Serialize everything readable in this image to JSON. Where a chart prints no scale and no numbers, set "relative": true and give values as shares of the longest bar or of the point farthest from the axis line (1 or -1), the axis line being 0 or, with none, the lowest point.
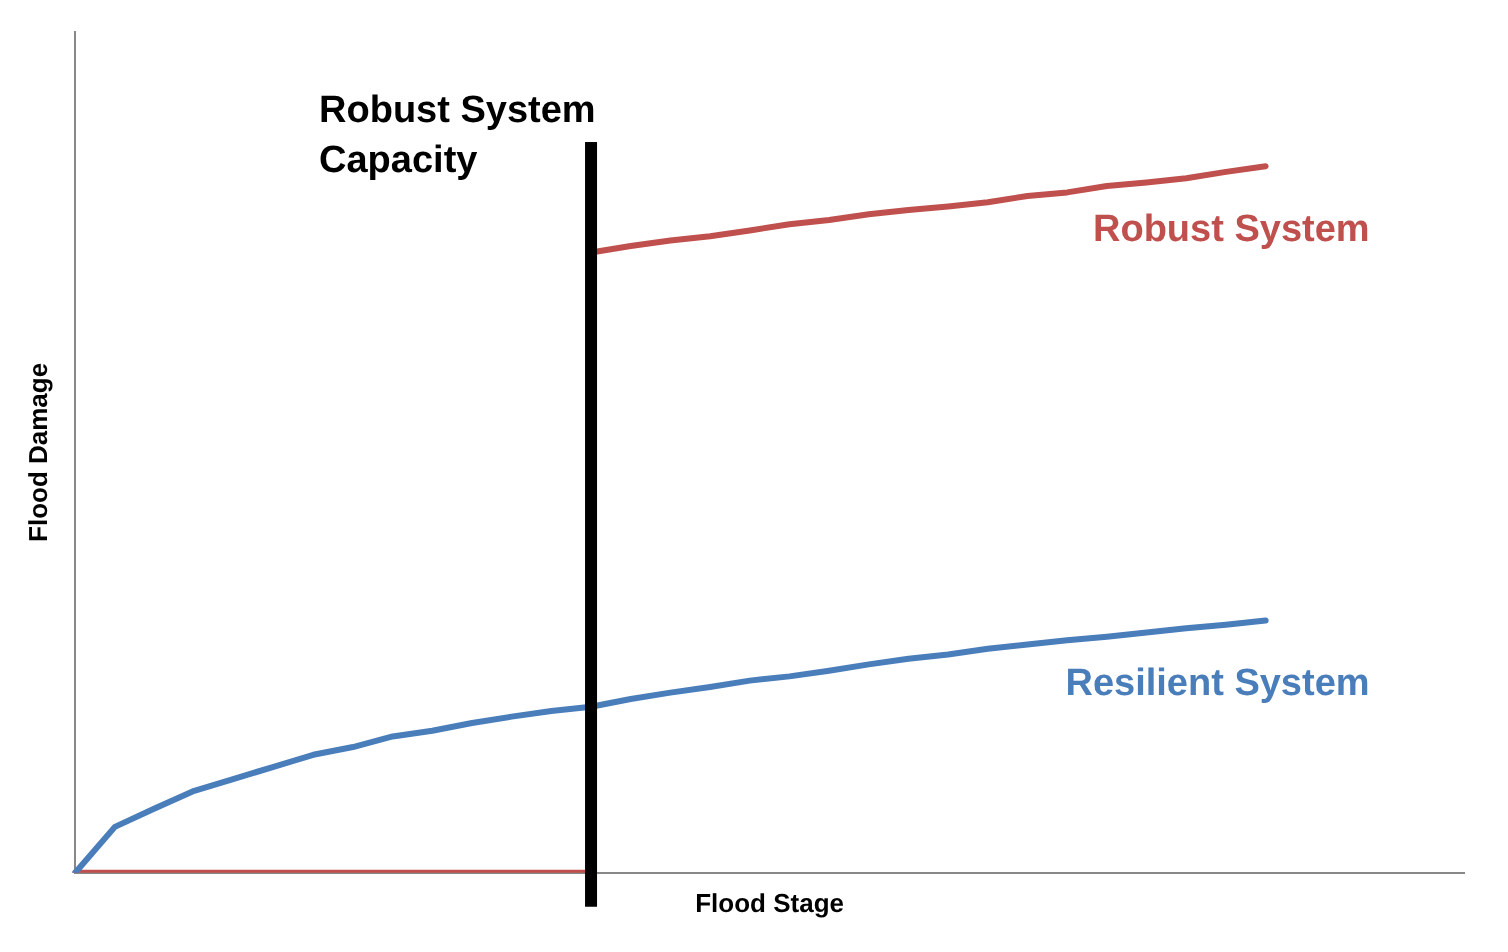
{
  "chart_data": {
    "type": "line",
    "relative": true,
    "xlabel": "Flood Stage",
    "ylabel": "Flood Damage",
    "legend": false,
    "marker": "none",
    "line_style": "solid",
    "categories": [
      null,
      null,
      null,
      null,
      null,
      null,
      null,
      null,
      null,
      null,
      null,
      null,
      null,
      null,
      null,
      null,
      null,
      null,
      null,
      null,
      null,
      null,
      null,
      null,
      null,
      null,
      null,
      null,
      null,
      null,
      null,
      null,
      null,
      null,
      null,
      null
    ],
    "series": [
      {
        "name": "Robust System",
        "color": "#c0504d",
        "values": [
          null,
          null,
          null,
          null,
          null,
          null,
          null,
          null,
          null,
          null,
          null,
          null,
          null,
          0.878,
          0.887,
          0.895,
          0.901,
          0.909,
          0.918,
          0.924,
          0.932,
          0.938,
          0.943,
          0.949,
          0.958,
          0.963,
          0.972,
          0.977,
          0.983,
          0.992,
          1,
          null,
          null,
          null,
          null,
          null
        ]
      },
      {
        "name": "Resilient System",
        "color": "#4a7ebb",
        "values": [
          0,
          0.065,
          0.091,
          0.116,
          0.133,
          0.15,
          0.167,
          0.178,
          0.193,
          0.201,
          0.212,
          0.221,
          0.229,
          0.235,
          0.246,
          0.255,
          0.263,
          0.272,
          0.278,
          0.286,
          0.295,
          0.303,
          0.309,
          0.317,
          0.323,
          0.329,
          0.334,
          0.34,
          0.346,
          0.351,
          0.357,
          null,
          null,
          null,
          null,
          null
        ]
      },
      {
        "color": "#c0504d",
        "values": [
          0,
          0,
          0,
          0,
          0,
          0,
          0,
          0,
          0,
          0,
          0,
          0,
          0,
          0,
          null,
          null,
          null,
          null,
          null,
          null,
          null,
          null,
          null,
          null,
          null,
          null,
          null,
          null,
          null,
          null,
          null,
          null,
          null,
          null,
          null,
          null
        ]
      }
    ],
    "ref_lines": [
      {
        "axis": "x",
        "label": "Robust System Capacity",
        "color": "#000000"
      }
    ]
  }
}
